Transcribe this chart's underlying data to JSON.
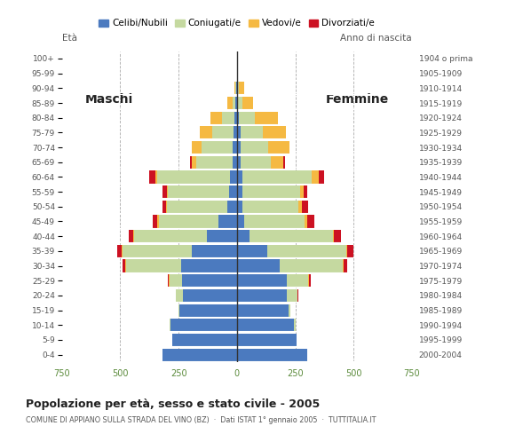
{
  "age_groups": [
    "0-4",
    "5-9",
    "10-14",
    "15-19",
    "20-24",
    "25-29",
    "30-34",
    "35-39",
    "40-44",
    "45-49",
    "50-54",
    "55-59",
    "60-64",
    "65-69",
    "70-74",
    "75-79",
    "80-84",
    "85-89",
    "90-94",
    "95-99",
    "100+"
  ],
  "birth_years": [
    "2000-2004",
    "1995-1999",
    "1990-1994",
    "1985-1989",
    "1980-1984",
    "1975-1979",
    "1970-1974",
    "1965-1969",
    "1960-1964",
    "1955-1959",
    "1950-1954",
    "1945-1949",
    "1940-1944",
    "1935-1939",
    "1930-1934",
    "1925-1929",
    "1920-1924",
    "1915-1919",
    "1910-1914",
    "1905-1909",
    "1904 o prima"
  ],
  "male": {
    "celibe": [
      320,
      275,
      285,
      245,
      230,
      235,
      240,
      195,
      130,
      80,
      40,
      35,
      30,
      20,
      20,
      15,
      10,
      5,
      2,
      0,
      0
    ],
    "coniugato": [
      0,
      0,
      2,
      5,
      30,
      55,
      235,
      295,
      310,
      255,
      260,
      260,
      310,
      155,
      130,
      90,
      55,
      15,
      5,
      0,
      0
    ],
    "vedovo": [
      0,
      0,
      0,
      0,
      0,
      2,
      2,
      2,
      3,
      5,
      5,
      5,
      10,
      20,
      45,
      55,
      50,
      20,
      5,
      0,
      0
    ],
    "divorziato": [
      0,
      0,
      0,
      0,
      2,
      5,
      12,
      20,
      20,
      20,
      15,
      20,
      25,
      5,
      0,
      0,
      0,
      0,
      0,
      0,
      0
    ]
  },
  "female": {
    "nubile": [
      300,
      255,
      245,
      220,
      215,
      215,
      185,
      130,
      55,
      30,
      25,
      25,
      25,
      15,
      15,
      15,
      10,
      5,
      5,
      2,
      0
    ],
    "coniugata": [
      0,
      0,
      5,
      10,
      45,
      90,
      270,
      340,
      355,
      260,
      240,
      245,
      295,
      130,
      120,
      95,
      65,
      20,
      5,
      0,
      0
    ],
    "vedova": [
      0,
      0,
      0,
      0,
      0,
      2,
      2,
      3,
      5,
      10,
      15,
      15,
      30,
      55,
      90,
      100,
      100,
      45,
      20,
      2,
      0
    ],
    "divorziata": [
      0,
      0,
      0,
      0,
      3,
      8,
      15,
      25,
      30,
      30,
      25,
      15,
      25,
      5,
      0,
      0,
      0,
      0,
      0,
      0,
      0
    ]
  },
  "colors": {
    "celibe": "#4b7abf",
    "coniugato": "#c5d9a0",
    "vedovo": "#f5b942",
    "divorziato": "#cc1122"
  },
  "legend_labels": [
    "Celibi/Nubili",
    "Coniugati/e",
    "Vedovi/e",
    "Divorziati/e"
  ],
  "title": "Popolazione per età, sesso e stato civile - 2005",
  "subtitle": "COMUNE DI APPIANO SULLA STRADA DEL VINO (BZ)  ·  Dati ISTAT 1° gennaio 2005  ·  TUTTITALIA.IT",
  "label_maschi": "Maschi",
  "label_femmine": "Femmine",
  "label_eta": "Età",
  "label_anno": "Anno di nascita",
  "xlim": 750,
  "bg_color": "#ffffff",
  "grid_color": "#aaaaaa",
  "bar_height": 0.85
}
